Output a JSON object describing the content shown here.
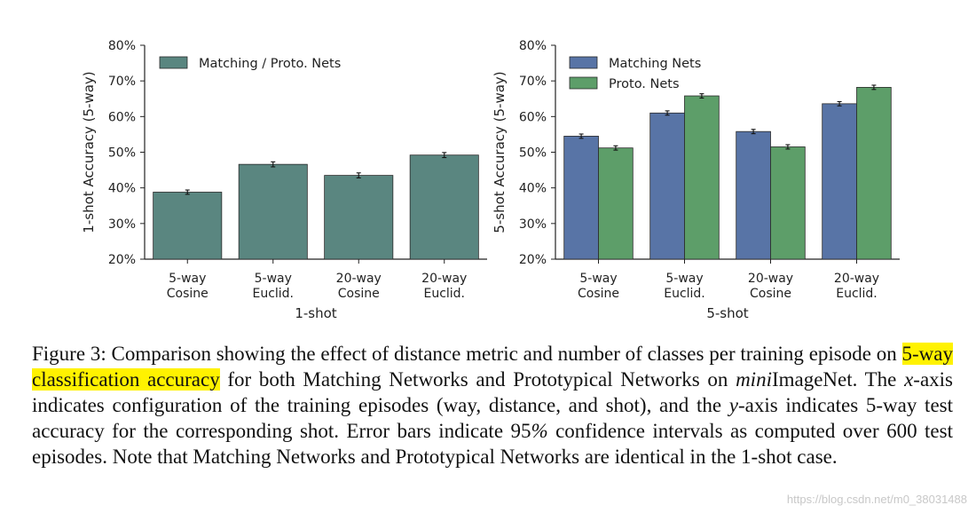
{
  "colors": {
    "single": "#5a8680",
    "matching": "#5874a6",
    "proto": "#5d9e69",
    "axis": "#222222",
    "highlight": "#fff200"
  },
  "chart_data": [
    {
      "type": "bar",
      "xlabel": "1-shot",
      "ylabel": "1-shot Accuracy (5-way)",
      "ylim": [
        20,
        80
      ],
      "yticks": [
        "20%",
        "30%",
        "40%",
        "50%",
        "60%",
        "70%",
        "80%"
      ],
      "categories": [
        "5-way\nCosine",
        "5-way\nEuclid.",
        "20-way\nCosine",
        "20-way\nEuclid."
      ],
      "legend_position": "upper-left",
      "series": [
        {
          "name": "Matching / Proto. Nets",
          "color_key": "single",
          "values": [
            38.8,
            46.6,
            43.5,
            49.2
          ],
          "errors": [
            0.6,
            0.7,
            0.7,
            0.7
          ]
        }
      ]
    },
    {
      "type": "bar",
      "xlabel": "5-shot",
      "ylabel": "5-shot Accuracy (5-way)",
      "ylim": [
        20,
        80
      ],
      "yticks": [
        "20%",
        "30%",
        "40%",
        "50%",
        "60%",
        "70%",
        "80%"
      ],
      "categories": [
        "5-way\nCosine",
        "5-way\nEuclid.",
        "20-way\nCosine",
        "20-way\nEuclid."
      ],
      "legend_position": "upper-left",
      "series": [
        {
          "name": "Matching Nets",
          "color_key": "matching",
          "values": [
            54.5,
            61.0,
            55.8,
            63.6
          ],
          "errors": [
            0.6,
            0.6,
            0.6,
            0.6
          ]
        },
        {
          "name": "Proto. Nets",
          "color_key": "proto",
          "values": [
            51.2,
            65.8,
            51.5,
            68.2
          ],
          "errors": [
            0.6,
            0.6,
            0.6,
            0.6
          ]
        }
      ]
    }
  ],
  "caption": {
    "part1": "Figure 3: Comparison showing the effect of distance metric and number of classes per training episode on ",
    "highlight": "5-way classification accuracy",
    "part2": " for both Matching Networks and Prototypical Networks on ",
    "mini": "mini",
    "part3": "ImageNet. The ",
    "x_var": "x",
    "part4": "-axis indicates configuration of the training episodes (way, distance, and shot), and the ",
    "y_var": "y",
    "part5": "-axis indicates 5-way test accuracy for the corresponding shot. Error bars indicate 95",
    "pct": "%",
    "part6": " confidence intervals as computed over 600 test episodes. Note that Matching Networks and Prototypical Networks are identical in the 1-shot case."
  },
  "watermark": "https://blog.csdn.net/m0_38031488"
}
